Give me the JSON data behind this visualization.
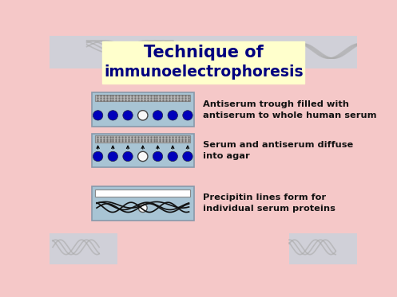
{
  "title_line1": "Technique of",
  "title_line2": "immunoelectrophoresis",
  "title_bg": "#ffffcc",
  "title_color": "#000080",
  "main_bg": "#f5c8c8",
  "swirl_bg_top": "#d0d0d8",
  "swirl_bg_bottom": "#d0d0d8",
  "panel_bg": "#a8c4d4",
  "panel_border": "#8899aa",
  "label1": "Antiserum trough filled with\nantiserum to whole human serum",
  "label2": "Serum and antiserum diffuse\ninto agar",
  "label3": "Precipitin lines form for\nindividual serum proteins",
  "dot_color_filled": "#0000bb",
  "dot_color_empty": "#f8f8f8",
  "trough_fill": "#b8b8b8",
  "trough_border": "#888888",
  "arrow_color": "#000000",
  "white_bar_color": "#ffffff",
  "wavy_line_color": "#111111",
  "text_color": "#111111"
}
